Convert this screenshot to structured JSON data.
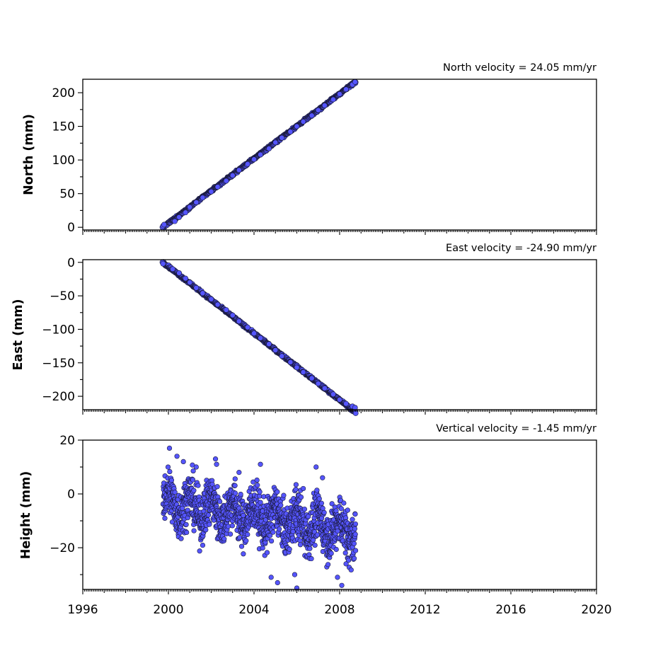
{
  "figure": {
    "x_tick_labels": [
      "1996",
      "2000",
      "2004",
      "2008",
      "2012",
      "2016",
      "2020"
    ]
  },
  "colors": {
    "marker_fill": "#5555ff",
    "marker_edge": "#1a1a3a"
  },
  "chart_data": [
    {
      "type": "scatter",
      "id": "north",
      "title": "North velocity = 24.05 mm/yr",
      "ylabel": "North (mm)",
      "xlim": [
        1996,
        2020
      ],
      "ylim": [
        -4,
        220
      ],
      "yticks": [
        0,
        50,
        100,
        150,
        200
      ],
      "ytick_labels": [
        "0",
        "50",
        "100",
        "150",
        "200"
      ],
      "xticks": [
        1996,
        2000,
        2004,
        2008,
        2012,
        2016,
        2020
      ],
      "xtick_labels_visible": false,
      "grid": false,
      "series": [
        {
          "trend": {
            "x0": 1999.75,
            "y0": 0,
            "slope": 24.05,
            "x_end": 2008.75
          },
          "x": [
            1999.72,
            1999.75,
            1999.8,
            2000.3,
            2000.5,
            2000.8,
            2001.0,
            2001.3,
            2001.6,
            2002.0,
            2002.3,
            2002.7,
            2003.0,
            2003.3,
            2003.7,
            2004.0,
            2004.3,
            2004.7,
            2005.0,
            2005.3,
            2005.7,
            2006.0,
            2006.3,
            2006.7,
            2007.0,
            2007.3,
            2007.7,
            2008.0,
            2008.3,
            2008.6,
            2008.72
          ],
          "y": [
            0,
            2,
            4,
            9,
            15,
            22,
            30,
            37,
            44,
            53,
            60,
            69,
            77,
            85,
            94,
            101,
            108,
            117,
            126,
            133,
            142,
            150,
            157,
            166,
            174,
            181,
            190,
            198,
            205,
            212,
            216
          ]
        }
      ]
    },
    {
      "type": "scatter",
      "id": "east",
      "title": "East velocity = -24.90 mm/yr",
      "ylabel": "East (mm)",
      "xlim": [
        1996,
        2020
      ],
      "ylim": [
        -220,
        4
      ],
      "yticks": [
        0,
        -50,
        -100,
        -150,
        -200
      ],
      "ytick_labels": [
        "0",
        "−50",
        "−100",
        "−150",
        "−200"
      ],
      "xticks": [
        1996,
        2000,
        2004,
        2008,
        2012,
        2016,
        2020
      ],
      "xtick_labels_visible": false,
      "grid": false,
      "series": [
        {
          "trend": {
            "x0": 1999.75,
            "y0": 0,
            "slope": -24.9,
            "x_end": 2008.75
          },
          "x": [
            1999.72,
            1999.75,
            2000.2,
            2000.5,
            2000.8,
            2001.0,
            2001.3,
            2001.6,
            2002.0,
            2002.3,
            2002.7,
            2003.0,
            2003.3,
            2003.7,
            2004.0,
            2004.3,
            2004.7,
            2005.0,
            2005.3,
            2005.7,
            2006.0,
            2006.3,
            2006.7,
            2007.0,
            2007.3,
            2007.7,
            2008.0,
            2008.3,
            2008.6,
            2008.72
          ],
          "y": [
            0,
            -2,
            -10,
            -16,
            -24,
            -30,
            -38,
            -46,
            -55,
            -63,
            -71,
            -79,
            -88,
            -97,
            -106,
            -113,
            -122,
            -131,
            -140,
            -149,
            -157,
            -164,
            -173,
            -181,
            -188,
            -197,
            -205,
            -211,
            -215,
            -217
          ]
        }
      ]
    },
    {
      "type": "scatter",
      "id": "height",
      "title": "Vertical velocity = -1.45 mm/yr",
      "ylabel": "Height (mm)",
      "xlim": [
        1996,
        2020
      ],
      "ylim": [
        -35.5,
        20
      ],
      "yticks": [
        20,
        0,
        -20
      ],
      "ytick_labels": [
        "20",
        "0",
        "−20"
      ],
      "xticks": [
        1996,
        2000,
        2004,
        2008,
        2012,
        2016,
        2020
      ],
      "xtick_labels_visible": true,
      "grid": false,
      "series": [
        {
          "x_range": [
            1999.75,
            2008.75
          ],
          "mean_start": -3,
          "mean_end": -14,
          "spread": 7.5,
          "x": [
            2000.05,
            2000.4,
            2000.7,
            2001.3,
            2002.2,
            2002.25,
            2003.3,
            2003.5,
            2004.3,
            2004.8,
            2005.1,
            2005.9,
            2006.0,
            2006.3,
            2006.9,
            2007.2,
            2007.9,
            2008.1,
            2008.3
          ],
          "y": [
            17,
            14,
            12,
            10,
            13,
            11,
            8,
            -8,
            11,
            -31,
            -33,
            -30,
            -35,
            2,
            10,
            6,
            -31,
            -34,
            -26
          ]
        }
      ]
    }
  ]
}
